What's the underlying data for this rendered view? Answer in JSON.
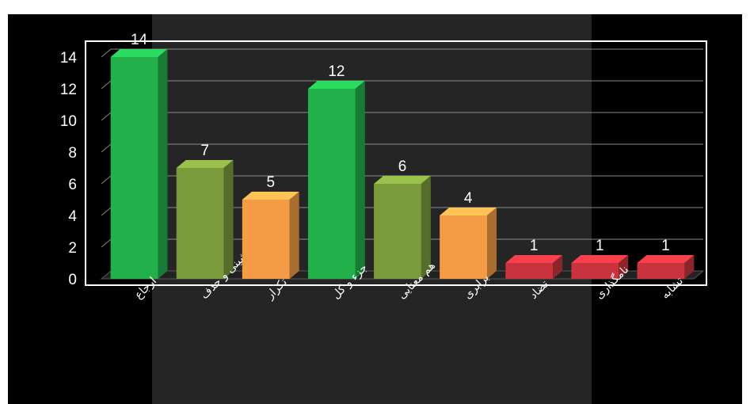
{
  "colors": {
    "background": "#000000",
    "overlay": "#2b2b2b",
    "plot_floor": "#222222",
    "gridline": "#8a8a8a",
    "green": "#22b04b",
    "olive": "#7a9a3c",
    "orange": "#f39c45",
    "red": "#c8333d",
    "text": "#ffffff"
  },
  "chart_data": {
    "type": "bar",
    "title": "",
    "xlabel": "",
    "ylabel": "",
    "ylim": [
      0,
      14
    ],
    "yticks": [
      "0",
      "2",
      "4",
      "6",
      "8",
      "10",
      "12",
      "14"
    ],
    "grid": true,
    "categories": [
      "ارجاع",
      "جانشینی و حذف",
      "تکرار",
      "جزء و کل",
      "هم معنایی",
      "برابری",
      "تضاد",
      "نامگذاری",
      "تشابه"
    ],
    "values": [
      14,
      7,
      5,
      12,
      6,
      4,
      1,
      1,
      1
    ],
    "bar_colors": [
      "green",
      "olive",
      "orange",
      "green",
      "olive",
      "orange",
      "red",
      "red",
      "red"
    ]
  }
}
